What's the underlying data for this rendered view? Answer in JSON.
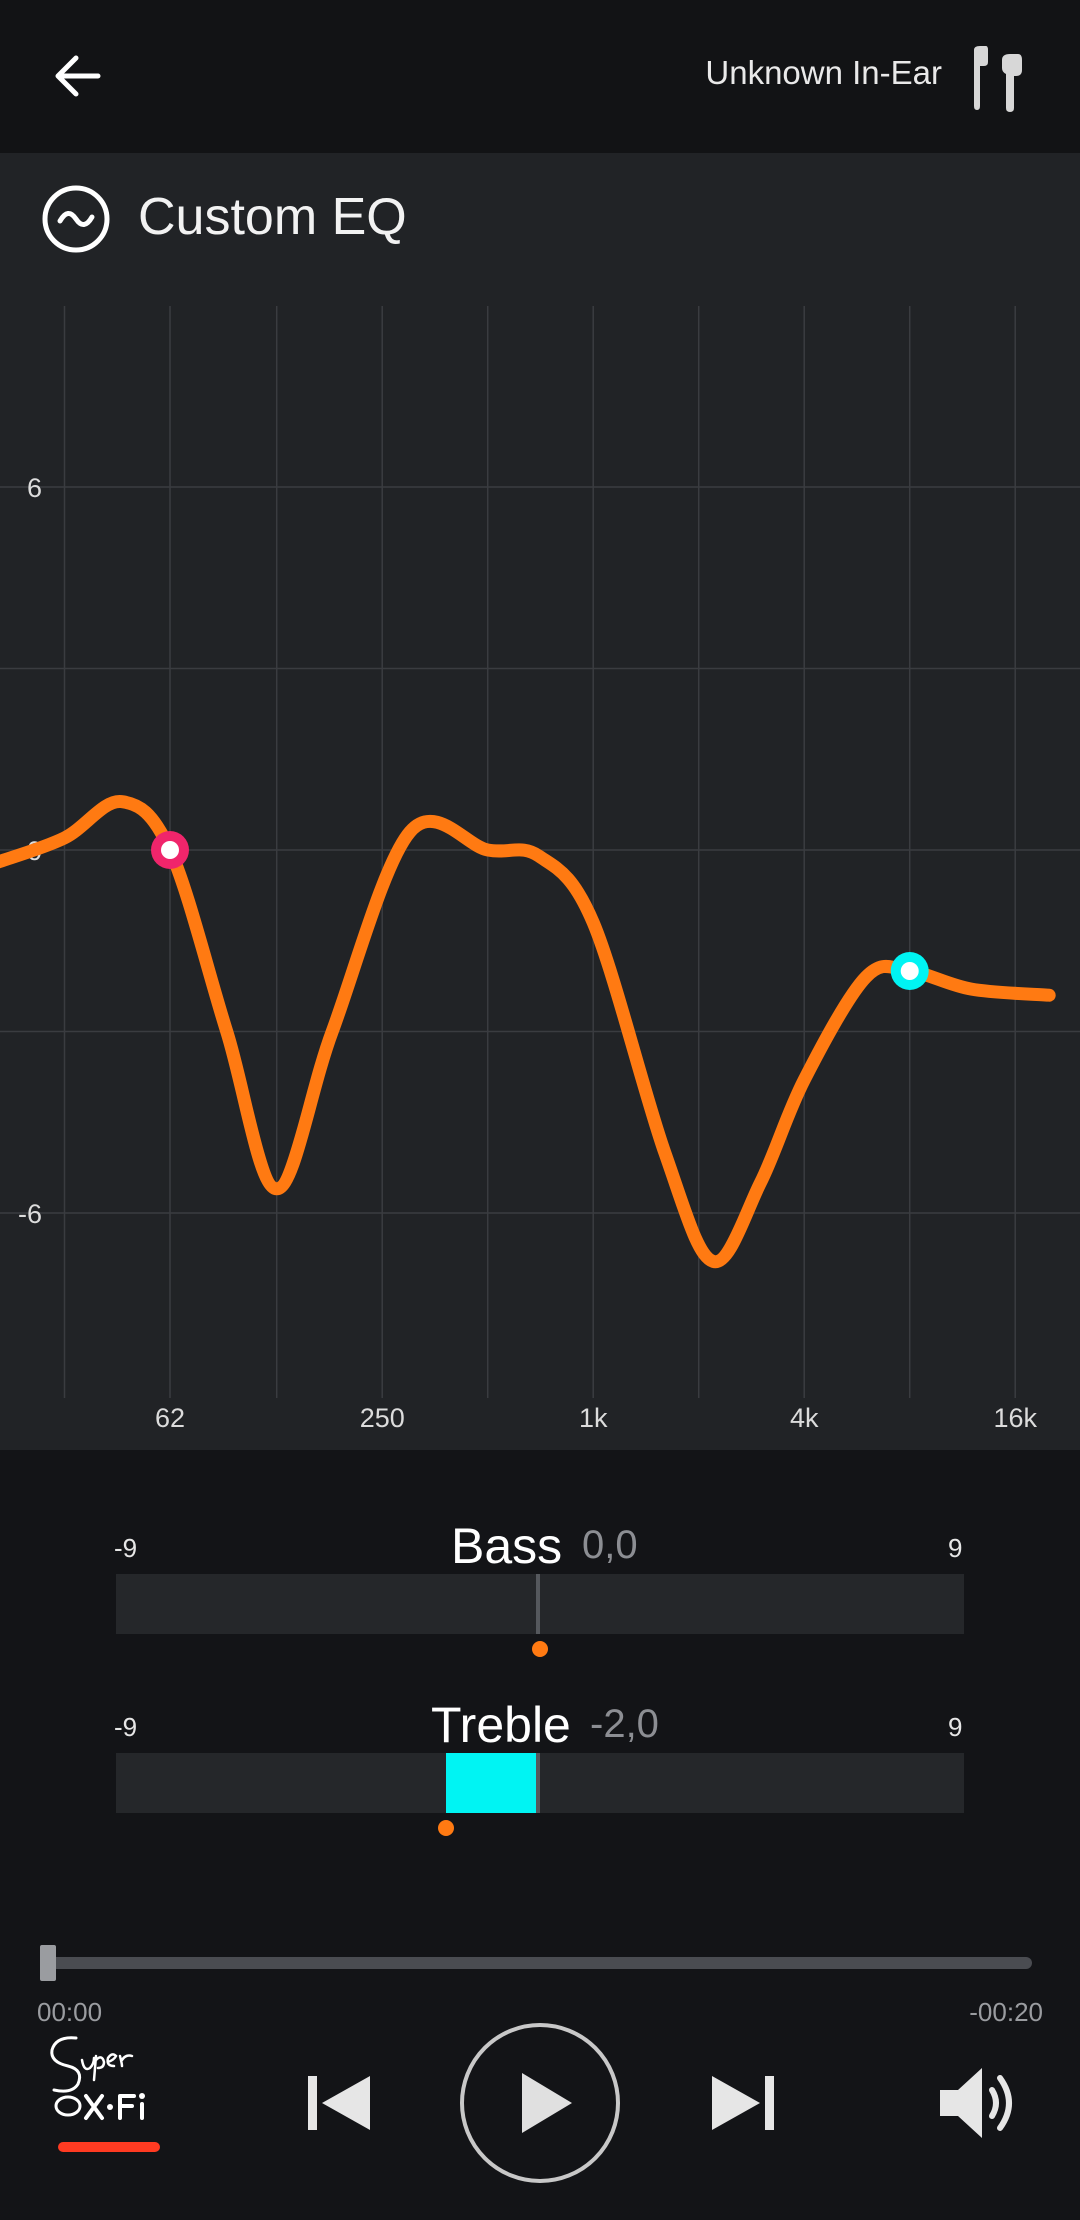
{
  "header": {
    "back_icon": "arrow-left-icon",
    "device_name": "Unknown In-Ear",
    "device_icon": "earbuds-icon"
  },
  "eq": {
    "title": "Custom EQ",
    "title_icon": "wave-circle-icon",
    "colors": {
      "curve": "#ff7a12",
      "bass_handle": "#f0256b",
      "treble_handle": "#00f4f3",
      "grid": "#3a3c40"
    },
    "chart_data": {
      "type": "line",
      "title": "",
      "xlabel": "",
      "ylabel": "",
      "x_scale": "log",
      "x_ticks": [
        "62",
        "250",
        "1k",
        "4k",
        "16k"
      ],
      "y_ticks": [
        "6",
        "0",
        "-6"
      ],
      "ylim": [
        -9,
        9
      ],
      "grid": true,
      "series": [
        {
          "points": [
            {
              "x": 20,
              "y": -0.2
            },
            {
              "x": 31,
              "y": 0.2
            },
            {
              "x": 45,
              "y": 0.8
            },
            {
              "x": 62,
              "y": 0.0
            },
            {
              "x": 90,
              "y": -3.0
            },
            {
              "x": 125,
              "y": -5.6
            },
            {
              "x": 180,
              "y": -3.0
            },
            {
              "x": 300,
              "y": 0.3
            },
            {
              "x": 500,
              "y": 0.0
            },
            {
              "x": 700,
              "y": -0.1
            },
            {
              "x": 1000,
              "y": -1.2
            },
            {
              "x": 1600,
              "y": -5.0
            },
            {
              "x": 2200,
              "y": -6.8
            },
            {
              "x": 3000,
              "y": -5.5
            },
            {
              "x": 4000,
              "y": -3.8
            },
            {
              "x": 6000,
              "y": -2.1
            },
            {
              "x": 8000,
              "y": -2.0
            },
            {
              "x": 12000,
              "y": -2.3
            },
            {
              "x": 20000,
              "y": -2.4
            }
          ]
        }
      ],
      "handles": [
        {
          "x": 62,
          "y": 0.0,
          "color": "#f0256b"
        },
        {
          "x": 8000,
          "y": -2.0,
          "color": "#00f4f3"
        }
      ]
    }
  },
  "tone": {
    "min_label": "-9",
    "max_label": "9",
    "bass": {
      "label": "Bass",
      "value_text": "0,0",
      "value": 0.0
    },
    "treble": {
      "label": "Treble",
      "value_text": "-2,0",
      "value": -2.0
    }
  },
  "player": {
    "elapsed": "00:00",
    "remaining": "-00:20",
    "progress": 0.0,
    "logo_icon": "super-xfi-logo",
    "prev_icon": "skip-previous-icon",
    "play_icon": "play-icon",
    "next_icon": "skip-next-icon",
    "volume_icon": "volume-icon"
  }
}
